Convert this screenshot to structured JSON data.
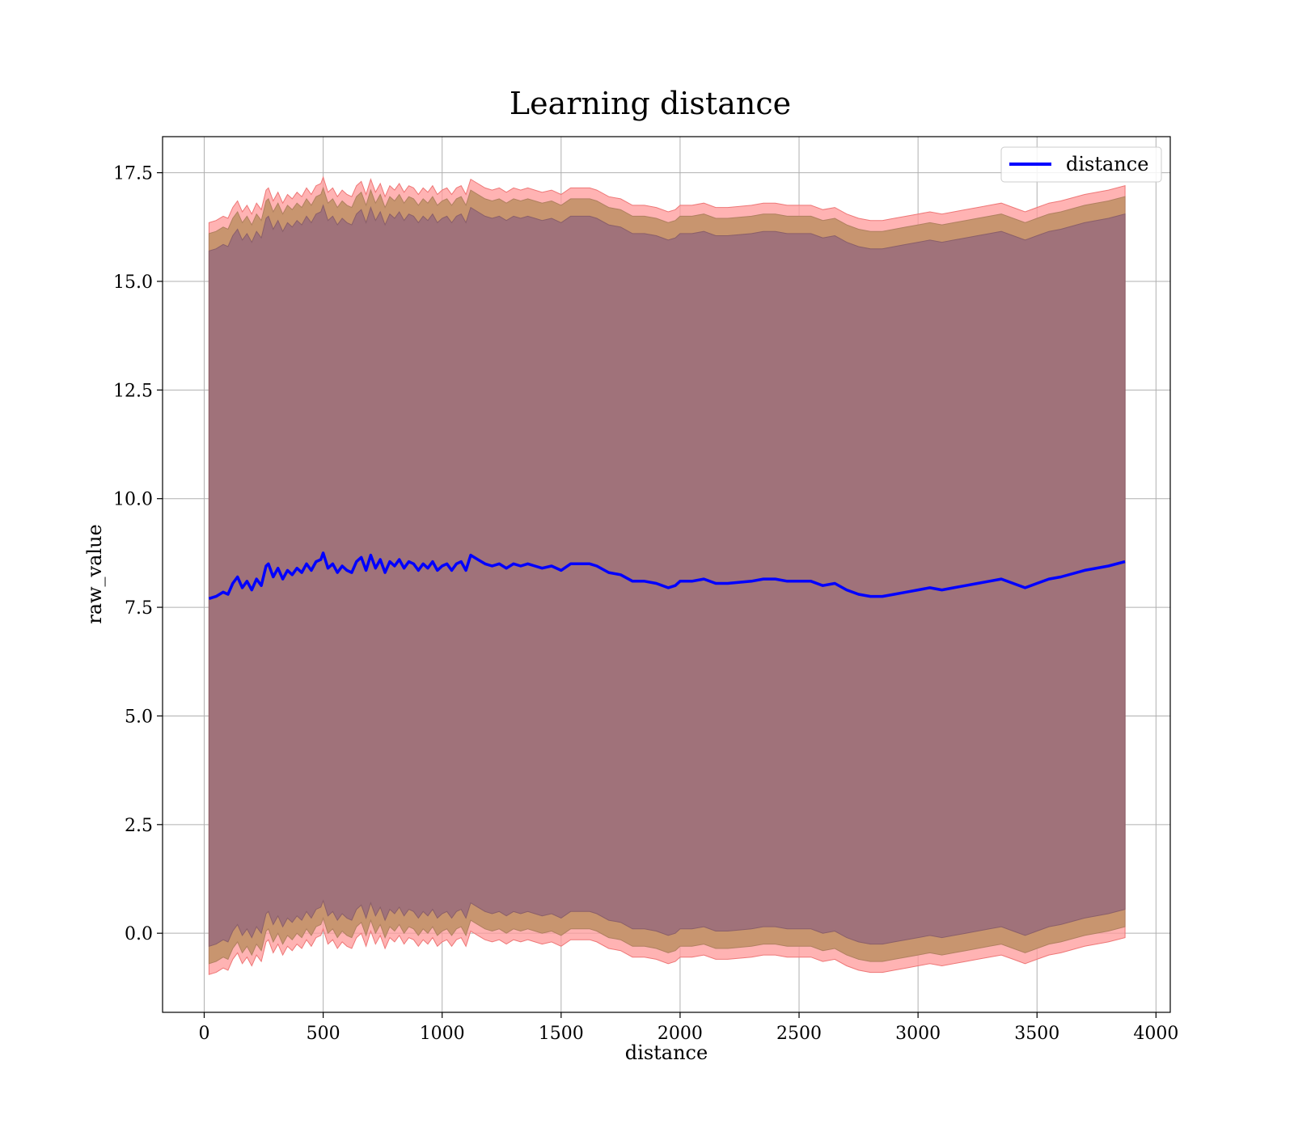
{
  "chart_data": {
    "type": "area",
    "title": "Learning distance",
    "xlabel": "distance",
    "ylabel": "raw_value",
    "xlim": [
      -175,
      4060
    ],
    "ylim": [
      -1.82,
      18.33
    ],
    "x_ticks": [
      0,
      500,
      1000,
      1500,
      2000,
      2500,
      3000,
      3500,
      4000
    ],
    "y_ticks": [
      0.0,
      2.5,
      5.0,
      7.5,
      10.0,
      12.5,
      15.0,
      17.5
    ],
    "x_tick_labels": [
      "0",
      "500",
      "1000",
      "1500",
      "2000",
      "2500",
      "3000",
      "3500",
      "4000"
    ],
    "y_tick_labels": [
      "0.0",
      "2.5",
      "5.0",
      "7.5",
      "10.0",
      "12.5",
      "15.0",
      "17.5"
    ],
    "grid": true,
    "legend_position": "top-right",
    "legend": [
      "distance"
    ],
    "colors": {
      "line": "#0000ff",
      "band_outer": "#ff9999",
      "band_middle": "#c8956f",
      "band_inner": "#a0727a",
      "grid": "#b0b0b0"
    },
    "band_offsets": {
      "inner": 8.0,
      "middle": 8.4,
      "outer": 8.65
    },
    "series": [
      {
        "name": "distance",
        "x": [
          20,
          50,
          80,
          100,
          120,
          140,
          160,
          180,
          200,
          220,
          240,
          260,
          270,
          290,
          310,
          330,
          350,
          370,
          390,
          410,
          430,
          450,
          470,
          490,
          500,
          520,
          540,
          560,
          580,
          600,
          620,
          640,
          660,
          680,
          700,
          720,
          740,
          760,
          780,
          800,
          820,
          840,
          860,
          880,
          900,
          920,
          940,
          960,
          980,
          1000,
          1020,
          1040,
          1060,
          1080,
          1100,
          1120,
          1150,
          1180,
          1210,
          1240,
          1270,
          1300,
          1330,
          1360,
          1390,
          1420,
          1460,
          1500,
          1540,
          1580,
          1620,
          1650,
          1700,
          1750,
          1800,
          1850,
          1900,
          1950,
          1980,
          2000,
          2050,
          2100,
          2150,
          2200,
          2300,
          2350,
          2400,
          2450,
          2500,
          2550,
          2600,
          2650,
          2700,
          2750,
          2800,
          2850,
          2900,
          2950,
          3000,
          3050,
          3100,
          3150,
          3200,
          3250,
          3300,
          3350,
          3400,
          3450,
          3500,
          3550,
          3600,
          3700,
          3800,
          3870
        ],
        "values": [
          7.7,
          7.75,
          7.85,
          7.8,
          8.05,
          8.2,
          7.95,
          8.1,
          7.9,
          8.15,
          8.0,
          8.45,
          8.5,
          8.2,
          8.4,
          8.15,
          8.35,
          8.25,
          8.4,
          8.3,
          8.5,
          8.35,
          8.55,
          8.6,
          8.75,
          8.4,
          8.5,
          8.3,
          8.45,
          8.35,
          8.3,
          8.55,
          8.65,
          8.35,
          8.7,
          8.4,
          8.6,
          8.3,
          8.55,
          8.45,
          8.6,
          8.4,
          8.55,
          8.5,
          8.35,
          8.5,
          8.4,
          8.55,
          8.35,
          8.45,
          8.5,
          8.35,
          8.5,
          8.55,
          8.35,
          8.7,
          8.6,
          8.5,
          8.45,
          8.5,
          8.4,
          8.5,
          8.45,
          8.5,
          8.45,
          8.4,
          8.45,
          8.35,
          8.5,
          8.5,
          8.5,
          8.45,
          8.3,
          8.25,
          8.1,
          8.1,
          8.05,
          7.95,
          8.0,
          8.1,
          8.1,
          8.15,
          8.05,
          8.05,
          8.1,
          8.15,
          8.15,
          8.1,
          8.1,
          8.1,
          8.0,
          8.05,
          7.9,
          7.8,
          7.75,
          7.75,
          7.8,
          7.85,
          7.9,
          7.95,
          7.9,
          7.95,
          8.0,
          8.05,
          8.1,
          8.15,
          8.05,
          7.95,
          8.05,
          8.15,
          8.2,
          8.35,
          8.45,
          8.55
        ]
      }
    ]
  }
}
